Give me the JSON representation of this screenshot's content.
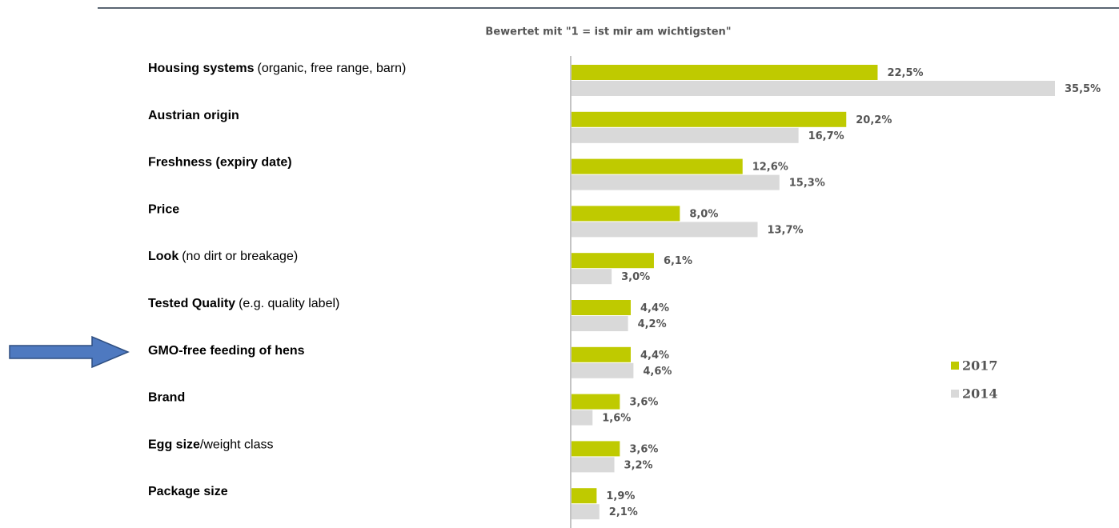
{
  "chart_data": {
    "type": "barh",
    "subtitle": "Bewertet mit \"1 = ist mir am wichtigsten\"",
    "categories": [
      [
        "Housing systems",
        "(organic, free range, barn)"
      ],
      [
        "Austrian origin"
      ],
      [
        "Freshness (expiry date)"
      ],
      [
        "Price"
      ],
      [
        "Look",
        "(no dirt or breakage)"
      ],
      [
        "Tested Quality",
        "(e.g. quality label)"
      ],
      [
        "GMO-free feeding of hens"
      ],
      [
        "Brand"
      ],
      [
        "Egg size",
        "/weight class"
      ],
      [
        "Package size"
      ]
    ],
    "series": [
      {
        "name": "2017",
        "color": "#bfca00",
        "values": [
          22.5,
          20.2,
          12.6,
          8.0,
          6.1,
          4.4,
          4.4,
          3.6,
          3.6,
          1.9
        ],
        "value_labels": [
          "22,5%",
          "20,2%",
          "12,6%",
          "8,0%",
          "6,1%",
          "4,4%",
          "4,4%",
          "3,6%",
          "3,6%",
          "1,9%"
        ]
      },
      {
        "name": "2014",
        "color": "#d9d9d9",
        "values": [
          35.5,
          16.7,
          15.3,
          13.7,
          3.0,
          4.2,
          4.6,
          1.6,
          3.2,
          2.1
        ],
        "value_labels": [
          "35,5%",
          "16,7%",
          "15,3%",
          "13,7%",
          "3,0%",
          "4,2%",
          "4,6%",
          "1,6%",
          "3,2%",
          "2,1%"
        ]
      }
    ],
    "legend": "right"
  }
}
